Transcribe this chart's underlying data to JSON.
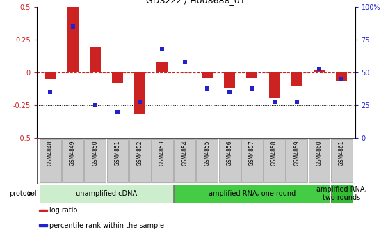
{
  "title": "GDS222 / H008688_01",
  "samples": [
    "GSM4848",
    "GSM4849",
    "GSM4850",
    "GSM4851",
    "GSM4852",
    "GSM4853",
    "GSM4854",
    "GSM4855",
    "GSM4856",
    "GSM4857",
    "GSM4858",
    "GSM4859",
    "GSM4860",
    "GSM4861"
  ],
  "log_ratio": [
    -0.05,
    0.5,
    0.19,
    -0.08,
    -0.32,
    0.08,
    0.0,
    -0.04,
    -0.12,
    -0.04,
    -0.19,
    -0.1,
    0.02,
    -0.07
  ],
  "percentile": [
    35,
    85,
    25,
    20,
    28,
    68,
    58,
    38,
    35,
    38,
    27,
    27,
    53,
    45
  ],
  "ylim_left": [
    -0.5,
    0.5
  ],
  "ylim_right": [
    0,
    100
  ],
  "yticks_left": [
    -0.5,
    -0.25,
    0.0,
    0.25,
    0.5
  ],
  "ytick_labels_left": [
    "-0.5",
    "-0.25",
    "0",
    "0.25",
    "0.5"
  ],
  "yticks_right": [
    0,
    25,
    50,
    75,
    100
  ],
  "ytick_labels_right": [
    "0",
    "25",
    "50",
    "75",
    "100%"
  ],
  "bar_color": "#cc2222",
  "dot_color": "#2222cc",
  "zero_line_color": "#cc2222",
  "dot_line_color": "#cc2222",
  "bg_color": "#ffffff",
  "protocol_groups": [
    {
      "label": "unamplified cDNA",
      "start": 0,
      "end": 5,
      "color": "#cceecc"
    },
    {
      "label": "amplified RNA, one round",
      "start": 6,
      "end": 12,
      "color": "#44cc44"
    },
    {
      "label": "amplified RNA,\ntwo rounds",
      "start": 13,
      "end": 13,
      "color": "#33bb33"
    }
  ],
  "legend_items": [
    {
      "label": "log ratio",
      "color": "#cc2222"
    },
    {
      "label": "percentile rank within the sample",
      "color": "#2222cc"
    }
  ],
  "protocol_label": "protocol",
  "bar_width": 0.5,
  "dot_marker_size": 5,
  "label_bg": "#cccccc",
  "title_fontsize": 9,
  "axis_fontsize": 7,
  "legend_fontsize": 7,
  "sample_fontsize": 5.5,
  "protocol_fontsize": 7
}
